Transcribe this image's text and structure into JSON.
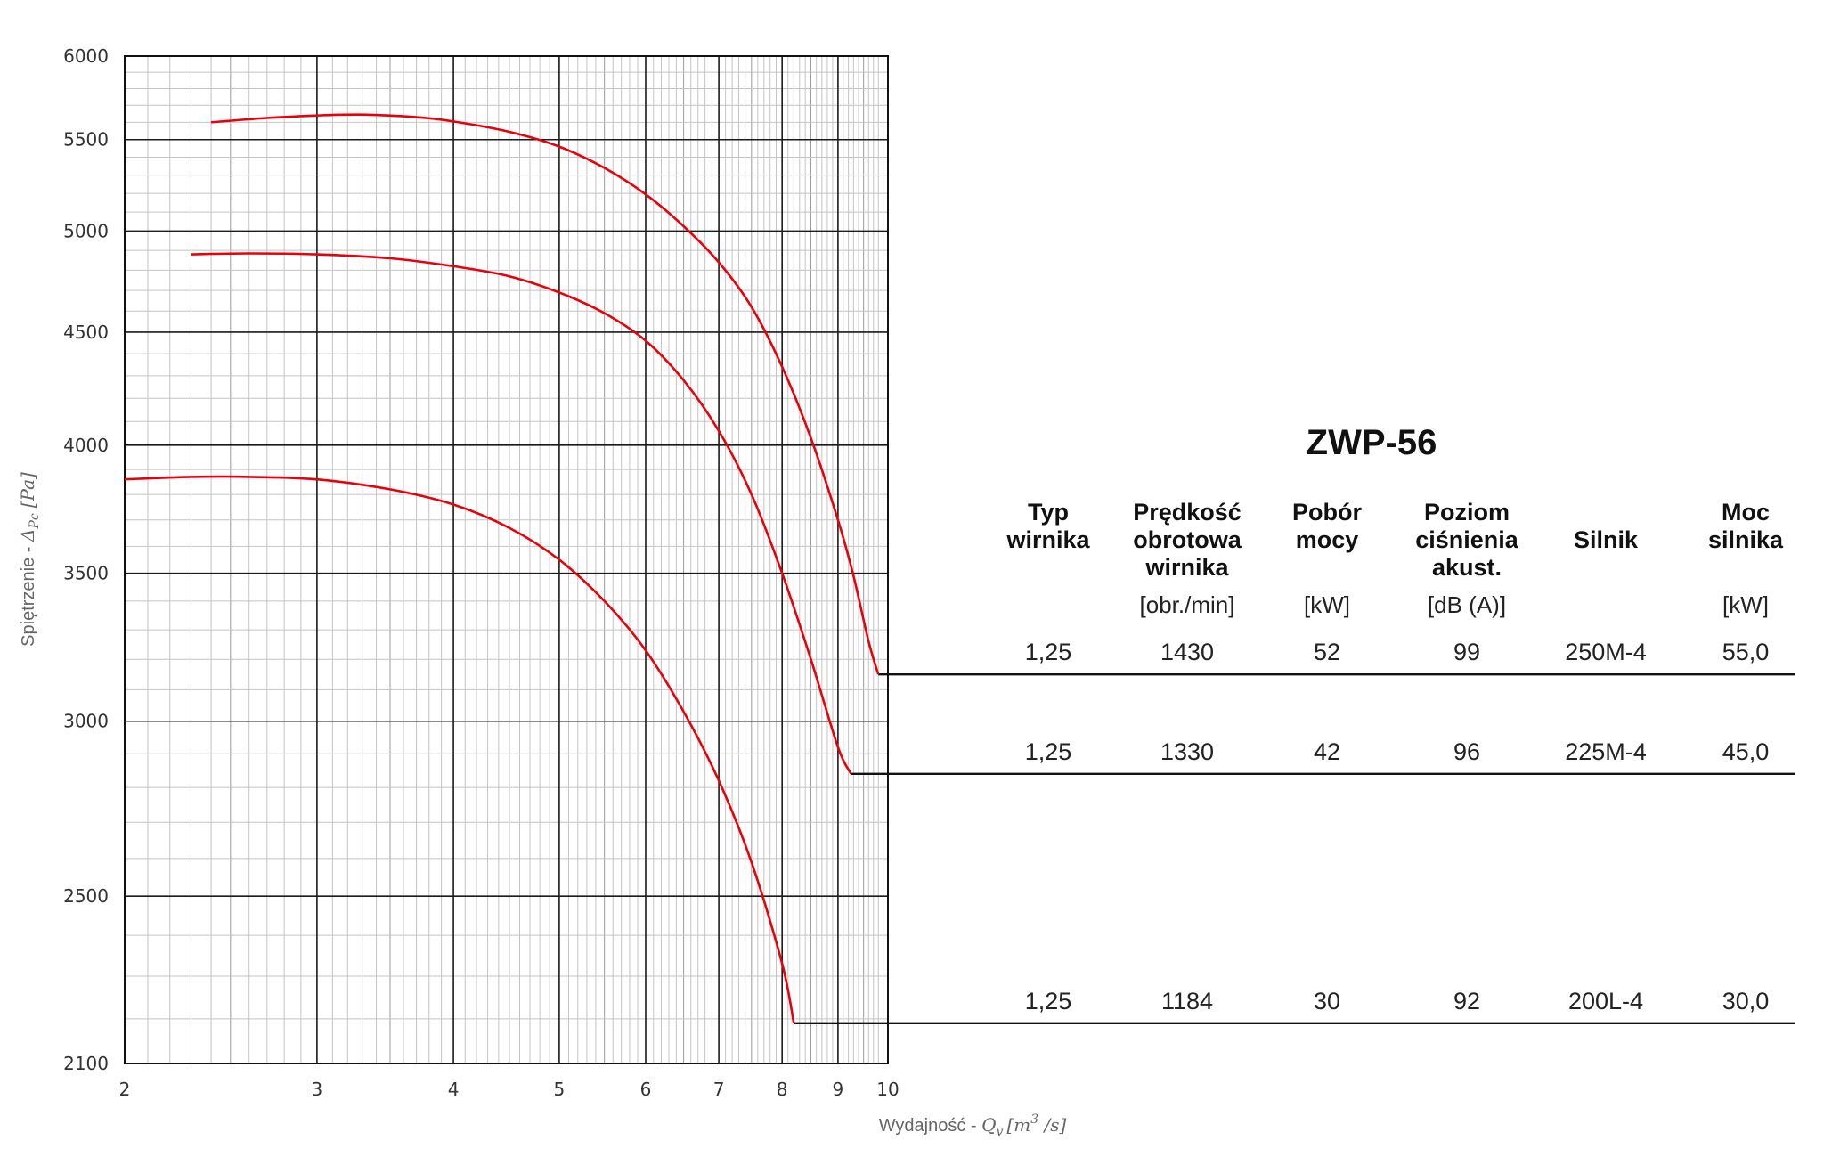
{
  "chart_data": {
    "type": "line",
    "xlabel": "Wydajność - ",
    "xlabel_math": "Q",
    "xlabel_sub": "v",
    "xlabel_unit": "[m",
    "xlabel_unit_sup": "3",
    "xlabel_unit_tail": " /s]",
    "ylabel": "Spiętrzenie - ",
    "ylabel_math": "Δ",
    "ylabel_sub": "Pc",
    "ylabel_unit": "[Pa]",
    "xscale": "log",
    "yscale": "log",
    "xlim": [
      2,
      10
    ],
    "ylim": [
      2100,
      6000
    ],
    "x_ticks": [
      2,
      3,
      4,
      5,
      6,
      7,
      8,
      9,
      10
    ],
    "x_tick_labels": [
      "2",
      "3",
      "4",
      "5",
      "6",
      "7",
      "8",
      "9",
      "10"
    ],
    "y_ticks": [
      2100,
      2500,
      3000,
      3500,
      4000,
      4500,
      5000,
      5500,
      6000
    ],
    "y_tick_labels": [
      "2100",
      "2500",
      "3000",
      "3500",
      "4000",
      "4500",
      "5000",
      "5500",
      "6000"
    ],
    "grid": true,
    "series": [
      {
        "color": "#e8000b",
        "x": [
          2.4,
          2.7,
          3.0,
          3.3,
          3.7,
          4.0,
          4.5,
          5.0,
          5.5,
          6.0,
          6.5,
          7.0,
          7.5,
          8.0,
          8.5,
          9.0,
          9.3,
          9.6,
          9.8
        ],
        "y": [
          5600,
          5625,
          5640,
          5645,
          5630,
          5605,
          5545,
          5460,
          5340,
          5195,
          5025,
          4840,
          4620,
          4340,
          4030,
          3700,
          3490,
          3260,
          3150
        ],
        "duty_point": [
          9.8,
          3150
        ]
      },
      {
        "color": "#e8000b",
        "x": [
          2.3,
          2.6,
          3.0,
          3.5,
          4.0,
          4.5,
          5.0,
          5.5,
          6.0,
          6.5,
          7.0,
          7.5,
          8.0,
          8.5,
          9.0,
          9.25
        ],
        "y": [
          4880,
          4885,
          4880,
          4860,
          4820,
          4770,
          4690,
          4590,
          4460,
          4280,
          4060,
          3800,
          3500,
          3200,
          2920,
          2840
        ],
        "duty_point": [
          9.25,
          2840
        ]
      },
      {
        "color": "#e8000b",
        "x": [
          2.0,
          2.3,
          2.6,
          3.0,
          3.5,
          4.0,
          4.5,
          5.0,
          5.5,
          6.0,
          6.5,
          7.0,
          7.5,
          8.0,
          8.2
        ],
        "y": [
          3860,
          3870,
          3870,
          3860,
          3820,
          3760,
          3670,
          3550,
          3400,
          3230,
          3030,
          2820,
          2590,
          2330,
          2190
        ],
        "duty_point": [
          8.2,
          2190
        ]
      }
    ]
  },
  "table": {
    "title": "ZWP-56",
    "columns": [
      {
        "head": [
          "Typ",
          "wirnika"
        ],
        "unit": ""
      },
      {
        "head": [
          "Prędkość",
          "obrotowa",
          "wirnika"
        ],
        "unit": "[obr./min]"
      },
      {
        "head": [
          "Pobór",
          "mocy"
        ],
        "unit": "[kW]"
      },
      {
        "head": [
          "Poziom",
          "ciśnienia",
          "akust."
        ],
        "unit": "[dB (A)]"
      },
      {
        "head": [
          "Silnik"
        ],
        "unit": ""
      },
      {
        "head": [
          "Moc",
          "silnika"
        ],
        "unit": "[kW]"
      }
    ],
    "rows": [
      {
        "series_index": 0,
        "cells": [
          "1,25",
          "1430",
          "52",
          "99",
          "250M-4",
          "55,0"
        ]
      },
      {
        "series_index": 1,
        "cells": [
          "1,25",
          "1330",
          "42",
          "96",
          "225M-4",
          "45,0"
        ]
      },
      {
        "series_index": 2,
        "cells": [
          "1,25",
          "1184",
          "30",
          "92",
          "200L-4",
          "30,0"
        ]
      }
    ]
  }
}
